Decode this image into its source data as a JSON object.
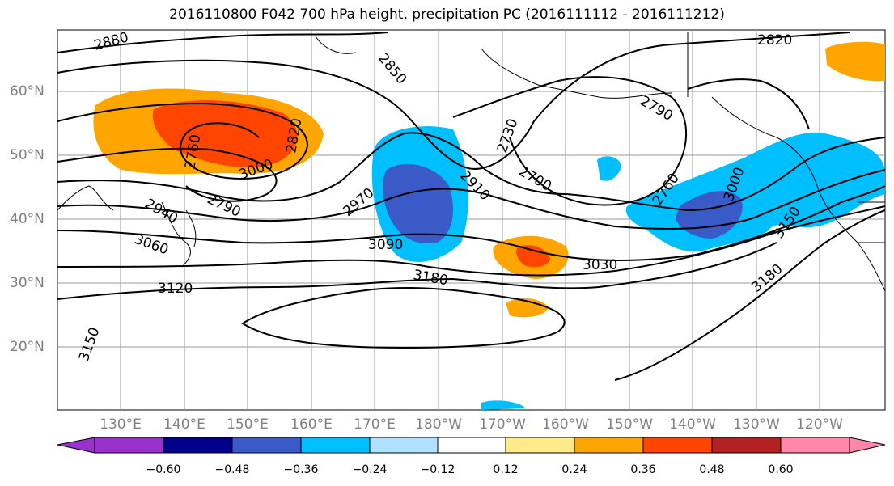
{
  "title": "2016110800 F042 700 hPa height, precipitation PC (2016111112 - 2016111212)",
  "lat_labels": [
    "60°N",
    "50°N",
    "40°N",
    "30°N",
    "20°N"
  ],
  "lon_labels": [
    "130°E",
    "140°E",
    "150°E",
    "160°E",
    "170°E",
    "180°W",
    "170°W",
    "160°W",
    "150°W",
    "140°W",
    "130°W",
    "120°W"
  ],
  "contour_labels": [
    "2880",
    "2850",
    "2820",
    "2790",
    "2760",
    "2730",
    "2700",
    "2910",
    "2970",
    "2940",
    "3000",
    "3060",
    "3090",
    "3030",
    "3120",
    "3150",
    "3180",
    "2820",
    "2790",
    "2760",
    "3000",
    "3150",
    "3180"
  ],
  "colorbar": {
    "ticks": [
      "−0.60",
      "−0.48",
      "−0.36",
      "−0.24",
      "−0.12",
      "0.12",
      "0.24",
      "0.36",
      "0.48",
      "0.60"
    ],
    "colors": [
      "#9932cc",
      "#00008b",
      "#3a5bc7",
      "#00bfff",
      "#b0e2ff",
      "#ffffff",
      "#ffeb8a",
      "#ffa500",
      "#ff4500",
      "#b22222",
      "#ff88aa"
    ]
  }
}
